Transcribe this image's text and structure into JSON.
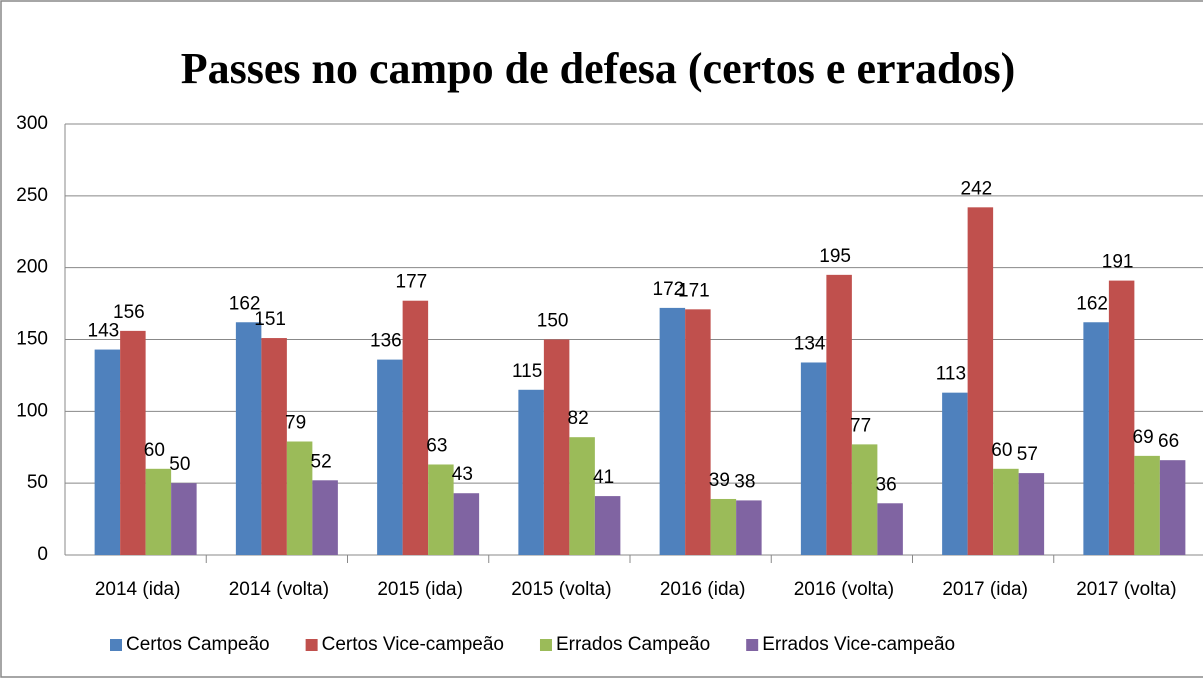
{
  "chart_data": {
    "type": "bar",
    "title": "Passes no campo de defesa (certos e errados)",
    "categories": [
      "2014 (ida)",
      "2014 (volta)",
      "2015 (ida)",
      "2015 (volta)",
      "2016 (ida)",
      "2016 (volta)",
      "2017 (ida)",
      "2017 (volta)"
    ],
    "series": [
      {
        "name": "Certos Campeão",
        "color": "#4f81bd",
        "values": [
          143,
          162,
          136,
          115,
          172,
          134,
          113,
          162
        ]
      },
      {
        "name": "Certos Vice-campeão",
        "color": "#c0504d",
        "values": [
          156,
          151,
          177,
          150,
          171,
          195,
          242,
          191
        ]
      },
      {
        "name": "Errados Campeão",
        "color": "#9bbb59",
        "values": [
          60,
          79,
          63,
          82,
          39,
          77,
          60,
          69
        ]
      },
      {
        "name": "Errados Vice-campeão",
        "color": "#8064a2",
        "values": [
          50,
          52,
          43,
          41,
          38,
          36,
          57,
          66
        ]
      }
    ],
    "ylim": [
      0,
      300
    ],
    "yticks": [
      0,
      50,
      100,
      150,
      200,
      250,
      300
    ],
    "grid": true,
    "legend": "bottom"
  }
}
